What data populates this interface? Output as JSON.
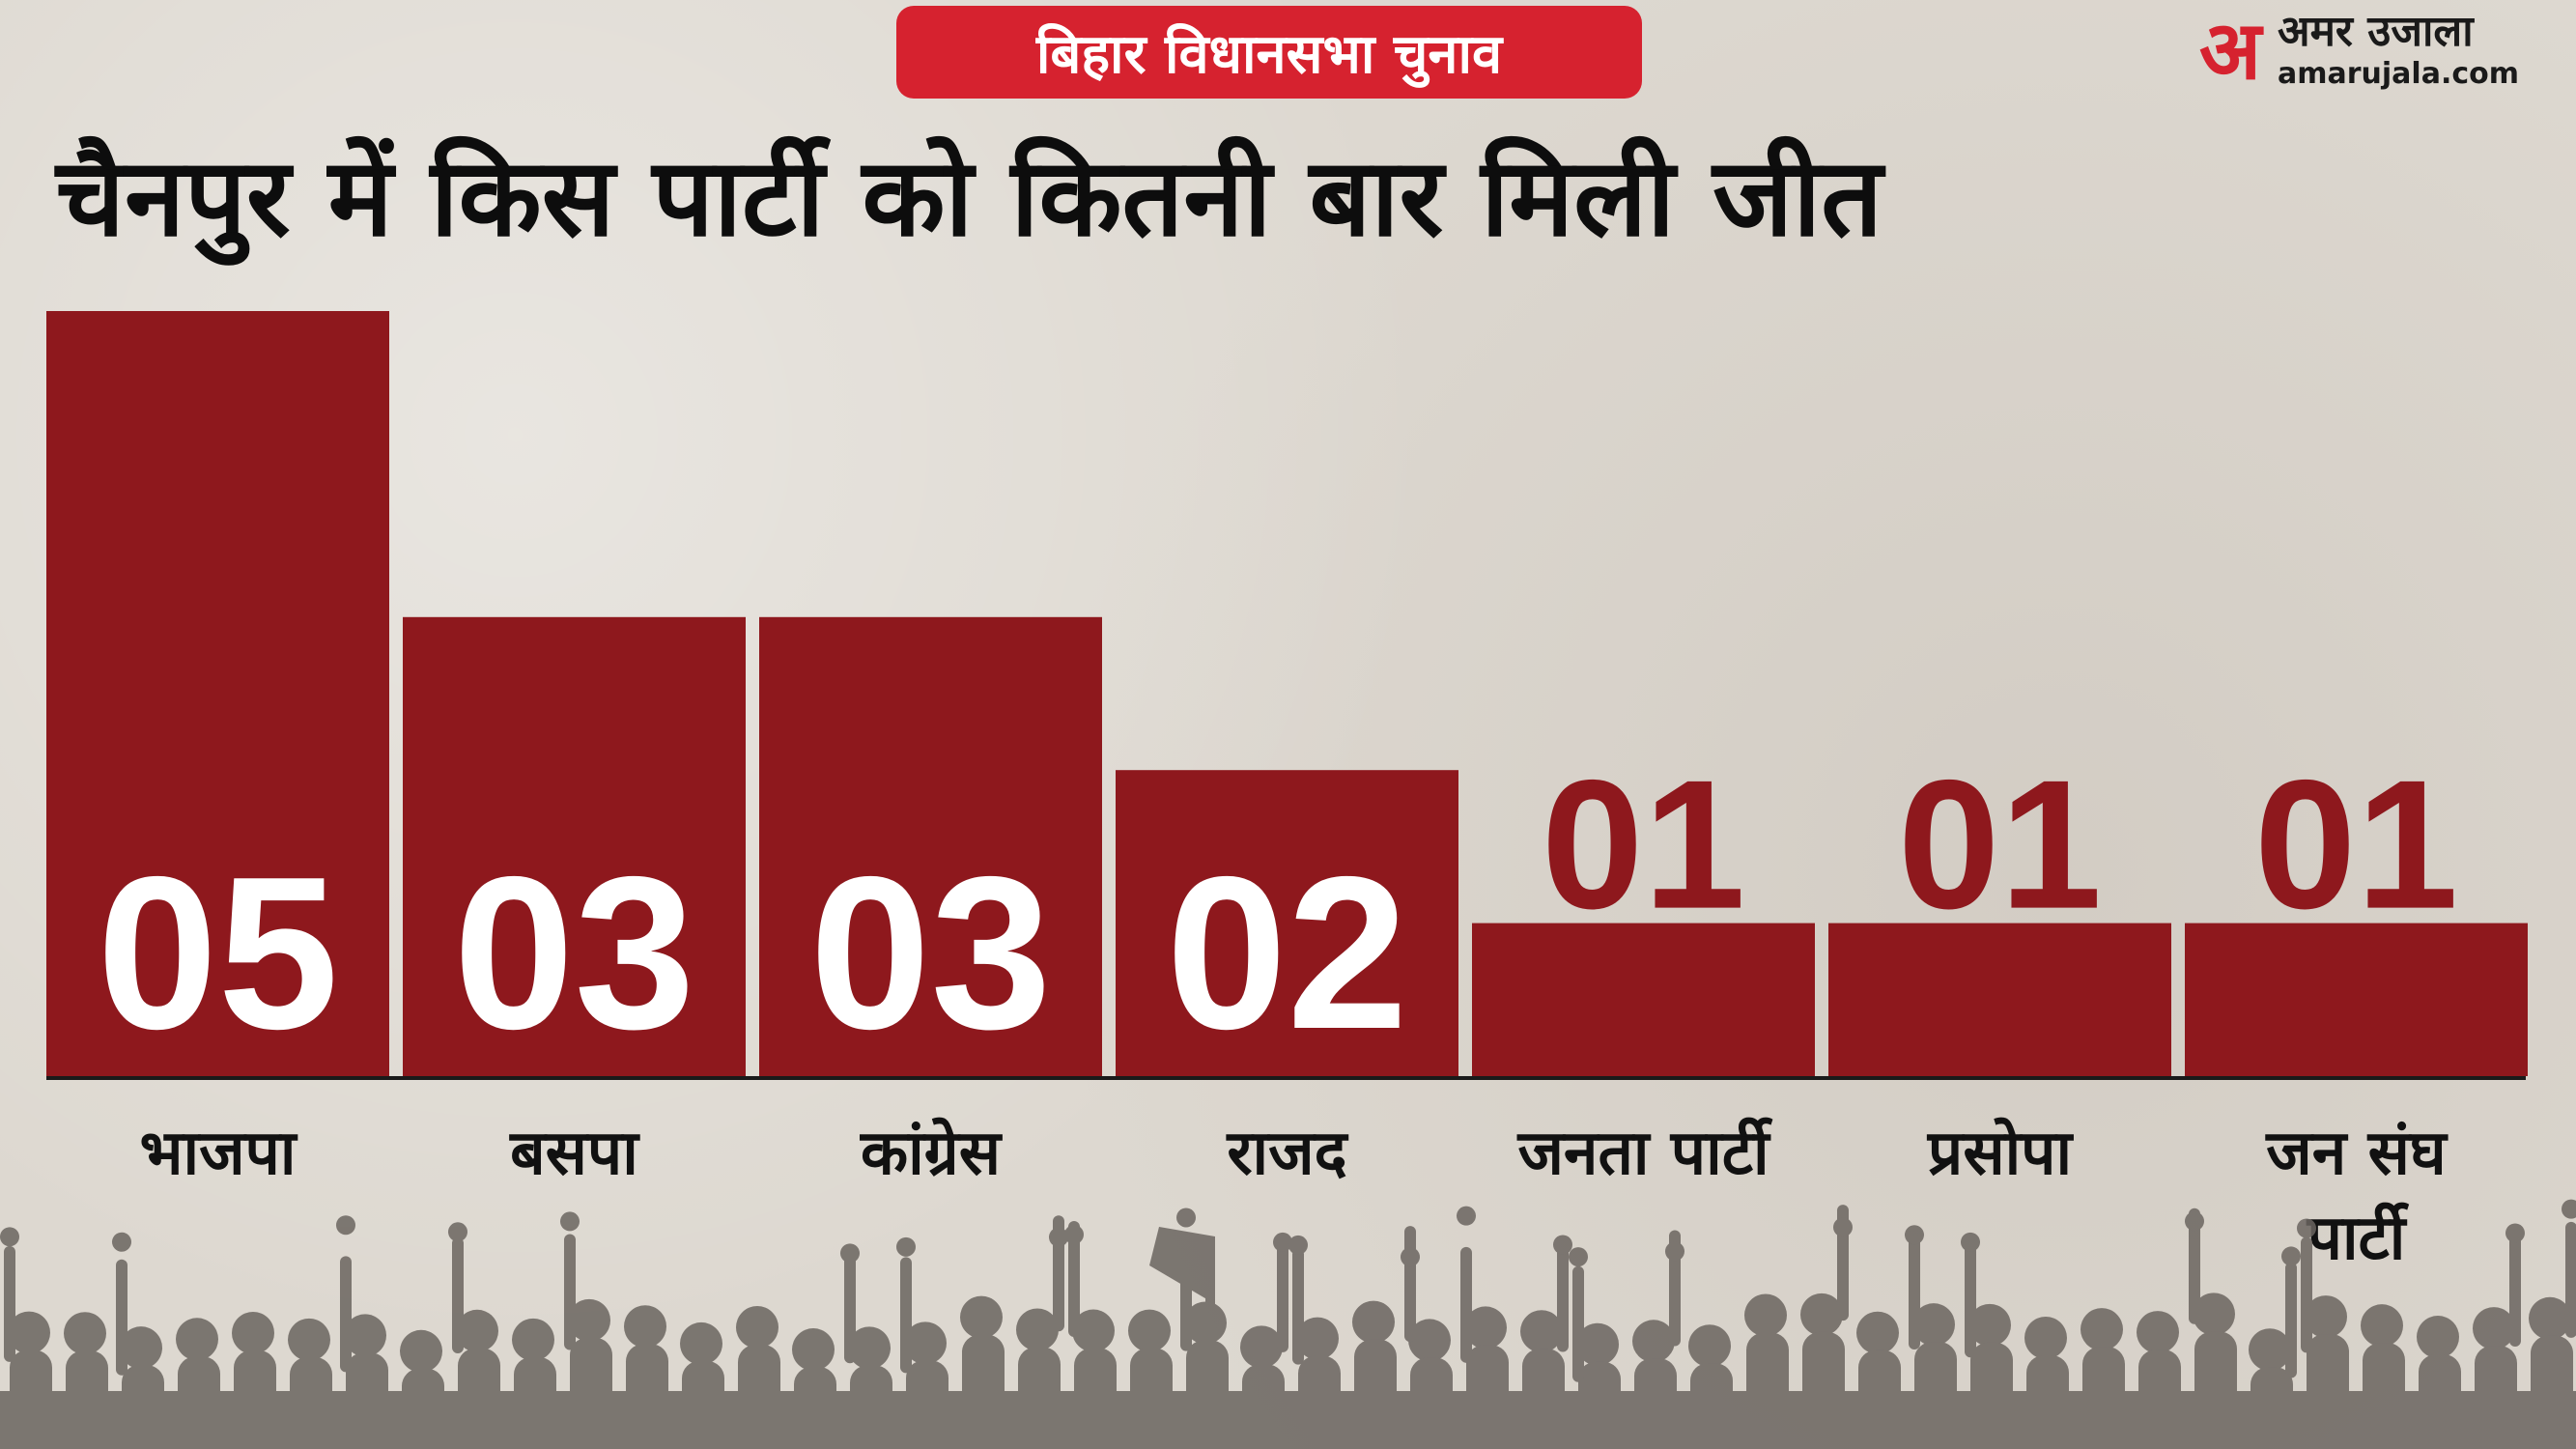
{
  "header": {
    "tag": "बिहार विधानसभा चुनाव",
    "title": "चैनपुर में किस पार्टी को कितनी बार मिली जीत"
  },
  "logo": {
    "mark": "अ",
    "name": "अमर उजाला",
    "url": "amarujala.com"
  },
  "colors": {
    "bar": "#8e181d",
    "tag": "#d6222f",
    "inside_label": "#ffffff",
    "outside_label": "#8e181d"
  },
  "chart_data": {
    "type": "bar",
    "categories": [
      "भाजपा",
      "बसपा",
      "कांग्रेस",
      "राजद",
      "जनता पार्टी",
      "प्रसोपा",
      "जन संघ पार्टी"
    ],
    "values": [
      5,
      3,
      3,
      2,
      1,
      1,
      1
    ],
    "value_labels": [
      "05",
      "03",
      "03",
      "02",
      "01",
      "01",
      "01"
    ],
    "category_lines": [
      [
        "भाजपा"
      ],
      [
        "बसपा"
      ],
      [
        "कांग्रेस"
      ],
      [
        "राजद"
      ],
      [
        "जनता पार्टी"
      ],
      [
        "प्रसोपा"
      ],
      [
        "जन संघ",
        "पार्टी"
      ]
    ],
    "ylim": [
      0,
      5
    ]
  }
}
